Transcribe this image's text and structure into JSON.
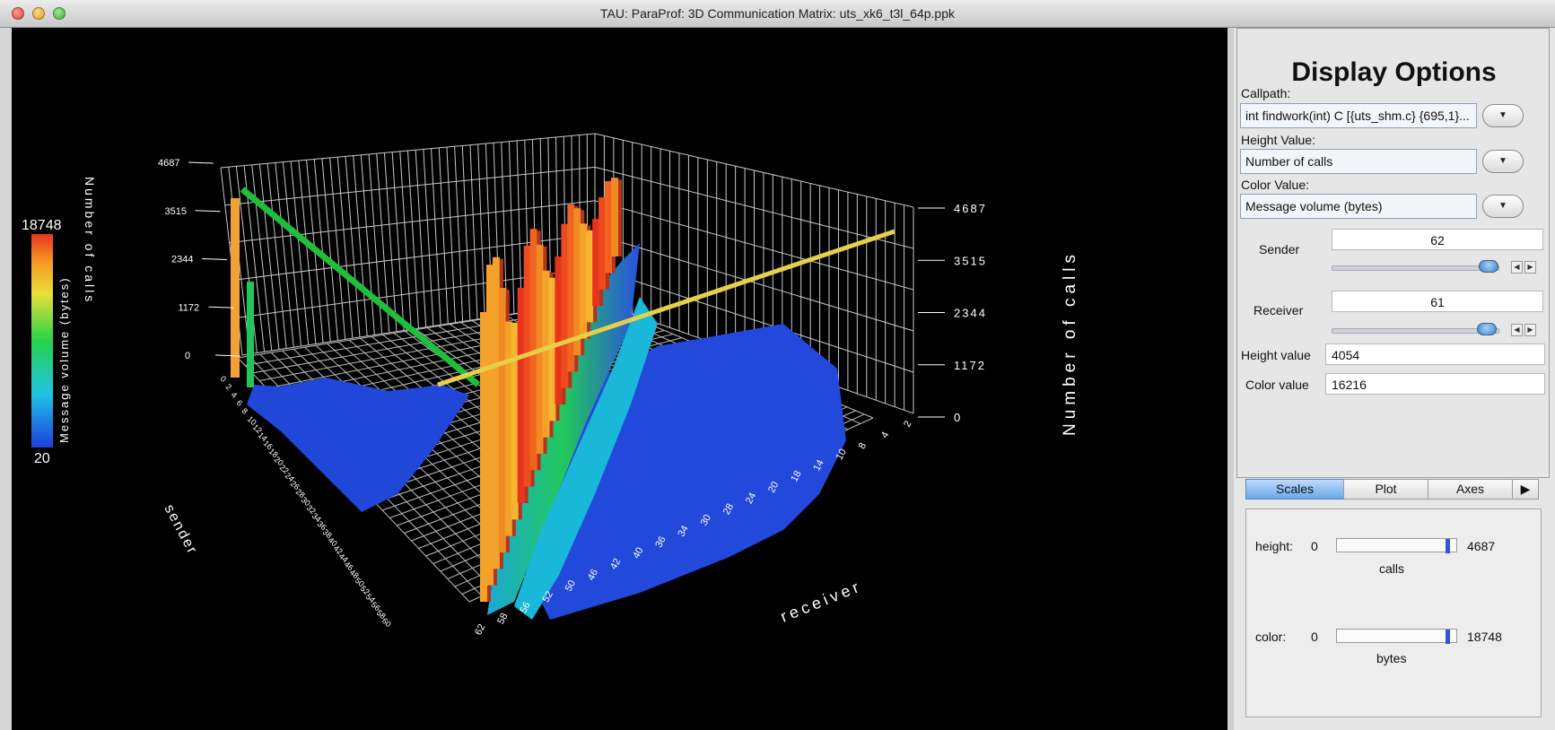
{
  "window": {
    "title": "TAU: ParaProf: 3D Communication Matrix: uts_xk6_t3l_64p.ppk"
  },
  "plot": {
    "z_ticks_left": [
      "4687",
      "3515",
      "2344",
      "1172",
      "0"
    ],
    "z_ticks_right": [
      "4687",
      "3515",
      "2344",
      "1172",
      "0"
    ],
    "z_axis_label": "Number of calls",
    "sender_axis_label": "sender",
    "receiver_axis_label": "receiver",
    "receiver_tick_labels": [
      "62",
      "58",
      "56",
      "52",
      "50",
      "46",
      "42",
      "40",
      "36",
      "34",
      "30",
      "28",
      "24",
      "20",
      "18",
      "14",
      "10",
      "8",
      "4",
      "2"
    ],
    "sender_tick_labels": [
      "0",
      "2",
      "4",
      "6",
      "8",
      "10",
      "12",
      "14",
      "16",
      "18",
      "20",
      "22",
      "24",
      "26",
      "28",
      "30",
      "32",
      "34",
      "36",
      "38",
      "40",
      "42",
      "44",
      "46",
      "48",
      "50",
      "52",
      "54",
      "56",
      "58",
      "60"
    ],
    "colorbar": {
      "max": "18748",
      "min": "20",
      "label": "Message volume (bytes)",
      "label2": "Number of calls"
    },
    "colors": {
      "background": "#000000",
      "grid": "#d0d0d0",
      "green_line": "#1fbf3c",
      "yellow_line": "#e6d04a",
      "low": "#1e3fd8",
      "high": "#e8331f"
    }
  },
  "options": {
    "title": "Display Options",
    "callpath_label": "Callpath:",
    "callpath_value": "int findwork(int) C [{uts_shm.c} {695,1}...",
    "height_value_label": "Height Value:",
    "height_value_value": "Number of calls",
    "color_value_label": "Color Value:",
    "color_value_value": "Message volume (bytes)",
    "sender_label": "Sender",
    "sender_value": "62",
    "receiver_label": "Receiver",
    "receiver_value": "61",
    "height_value_field_label": "Height value",
    "height_value_field": "4054",
    "color_value_field_label": "Color value",
    "color_value_field": "16216",
    "sender_slider_pos": 0.98,
    "receiver_slider_pos": 0.97
  },
  "tabs": [
    {
      "label": "Scales"
    },
    {
      "label": "Plot"
    },
    {
      "label": "Axes"
    }
  ],
  "scales": {
    "height_label": "height:",
    "height_min": "0",
    "height_max": "4687",
    "height_unit": "calls",
    "height_pos": 0.93,
    "color_label": "color:",
    "color_min": "0",
    "color_max": "18748",
    "color_unit": "bytes",
    "color_pos": 0.93
  }
}
